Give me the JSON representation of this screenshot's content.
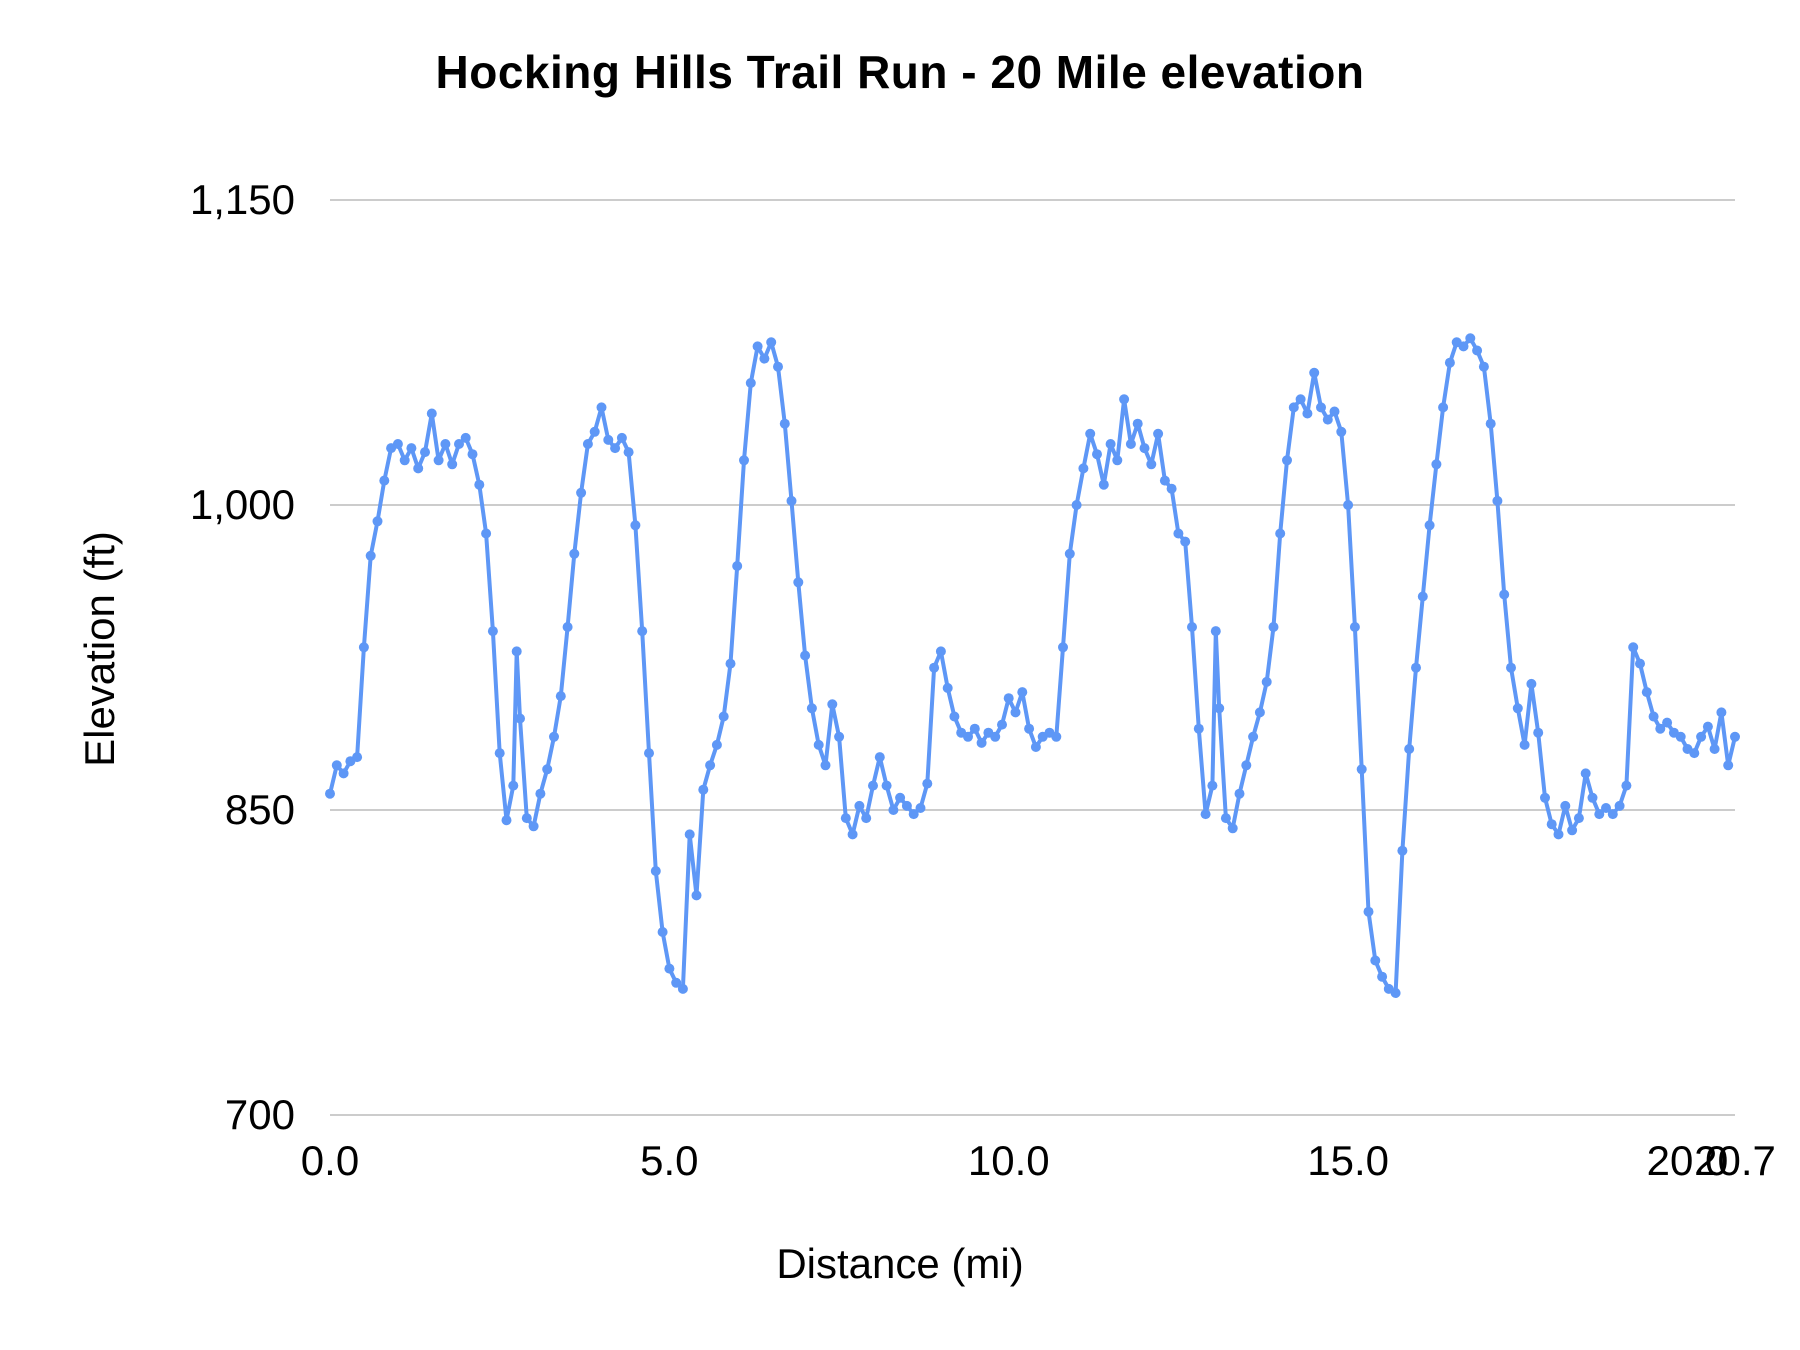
{
  "chart_data": {
    "type": "line",
    "title": "Hocking Hills Trail Run - 20 Mile elevation",
    "xlabel": "Distance (mi)",
    "ylabel": "Elevation (ft)",
    "xlim": [
      0,
      20.7
    ],
    "ylim": [
      700,
      1150
    ],
    "grid": "horizontal",
    "legend": "none",
    "line_color": "#5E97F6",
    "gridline_color": "#cccccc",
    "text_color": "#000000",
    "y_tick_values": [
      1150,
      1000,
      850,
      700
    ],
    "y_tick_labels": [
      "1,150",
      "1,000",
      "850",
      "700"
    ],
    "x_tick_values": [
      0,
      5,
      10,
      15,
      20,
      20.7
    ],
    "x_tick_labels": [
      "0.0",
      "5.0",
      "10.0",
      "15.0",
      "20.0",
      "20.7"
    ],
    "points": [
      [
        0.0,
        858
      ],
      [
        0.1,
        872
      ],
      [
        0.2,
        868
      ],
      [
        0.3,
        874
      ],
      [
        0.4,
        876
      ],
      [
        0.5,
        930
      ],
      [
        0.6,
        975
      ],
      [
        0.7,
        992
      ],
      [
        0.8,
        1012
      ],
      [
        0.9,
        1028
      ],
      [
        1.0,
        1030
      ],
      [
        1.1,
        1022
      ],
      [
        1.2,
        1028
      ],
      [
        1.3,
        1018
      ],
      [
        1.4,
        1026
      ],
      [
        1.5,
        1045
      ],
      [
        1.6,
        1022
      ],
      [
        1.7,
        1030
      ],
      [
        1.8,
        1020
      ],
      [
        1.9,
        1030
      ],
      [
        2.0,
        1033
      ],
      [
        2.1,
        1025
      ],
      [
        2.2,
        1010
      ],
      [
        2.3,
        986
      ],
      [
        2.4,
        938
      ],
      [
        2.5,
        878
      ],
      [
        2.6,
        845
      ],
      [
        2.7,
        862
      ],
      [
        2.75,
        928
      ],
      [
        2.8,
        895
      ],
      [
        2.9,
        846
      ],
      [
        3.0,
        842
      ],
      [
        3.1,
        858
      ],
      [
        3.2,
        870
      ],
      [
        3.3,
        886
      ],
      [
        3.4,
        906
      ],
      [
        3.5,
        940
      ],
      [
        3.6,
        976
      ],
      [
        3.7,
        1006
      ],
      [
        3.8,
        1030
      ],
      [
        3.9,
        1036
      ],
      [
        4.0,
        1048
      ],
      [
        4.1,
        1032
      ],
      [
        4.2,
        1028
      ],
      [
        4.3,
        1033
      ],
      [
        4.4,
        1026
      ],
      [
        4.5,
        990
      ],
      [
        4.6,
        938
      ],
      [
        4.7,
        878
      ],
      [
        4.8,
        820
      ],
      [
        4.9,
        790
      ],
      [
        5.0,
        772
      ],
      [
        5.1,
        765
      ],
      [
        5.2,
        762
      ],
      [
        5.3,
        838
      ],
      [
        5.4,
        808
      ],
      [
        5.5,
        860
      ],
      [
        5.6,
        872
      ],
      [
        5.7,
        882
      ],
      [
        5.8,
        896
      ],
      [
        5.9,
        922
      ],
      [
        6.0,
        970
      ],
      [
        6.1,
        1022
      ],
      [
        6.2,
        1060
      ],
      [
        6.3,
        1078
      ],
      [
        6.4,
        1072
      ],
      [
        6.5,
        1080
      ],
      [
        6.6,
        1068
      ],
      [
        6.7,
        1040
      ],
      [
        6.8,
        1002
      ],
      [
        6.9,
        962
      ],
      [
        7.0,
        926
      ],
      [
        7.1,
        900
      ],
      [
        7.2,
        882
      ],
      [
        7.3,
        872
      ],
      [
        7.4,
        902
      ],
      [
        7.5,
        886
      ],
      [
        7.6,
        846
      ],
      [
        7.7,
        838
      ],
      [
        7.8,
        852
      ],
      [
        7.9,
        846
      ],
      [
        8.0,
        862
      ],
      [
        8.1,
        876
      ],
      [
        8.2,
        862
      ],
      [
        8.3,
        850
      ],
      [
        8.4,
        856
      ],
      [
        8.5,
        852
      ],
      [
        8.6,
        848
      ],
      [
        8.7,
        851
      ],
      [
        8.8,
        863
      ],
      [
        8.9,
        920
      ],
      [
        9.0,
        928
      ],
      [
        9.1,
        910
      ],
      [
        9.2,
        896
      ],
      [
        9.3,
        888
      ],
      [
        9.4,
        886
      ],
      [
        9.5,
        890
      ],
      [
        9.6,
        883
      ],
      [
        9.7,
        888
      ],
      [
        9.8,
        886
      ],
      [
        9.9,
        892
      ],
      [
        10.0,
        905
      ],
      [
        10.1,
        898
      ],
      [
        10.2,
        908
      ],
      [
        10.3,
        890
      ],
      [
        10.4,
        881
      ],
      [
        10.5,
        886
      ],
      [
        10.6,
        888
      ],
      [
        10.7,
        886
      ],
      [
        10.8,
        930
      ],
      [
        10.9,
        976
      ],
      [
        11.0,
        1000
      ],
      [
        11.1,
        1018
      ],
      [
        11.2,
        1035
      ],
      [
        11.3,
        1025
      ],
      [
        11.4,
        1010
      ],
      [
        11.5,
        1030
      ],
      [
        11.6,
        1022
      ],
      [
        11.7,
        1052
      ],
      [
        11.8,
        1030
      ],
      [
        11.9,
        1040
      ],
      [
        12.0,
        1028
      ],
      [
        12.1,
        1020
      ],
      [
        12.2,
        1035
      ],
      [
        12.3,
        1012
      ],
      [
        12.4,
        1008
      ],
      [
        12.5,
        986
      ],
      [
        12.6,
        982
      ],
      [
        12.7,
        940
      ],
      [
        12.8,
        890
      ],
      [
        12.9,
        848
      ],
      [
        13.0,
        862
      ],
      [
        13.05,
        938
      ],
      [
        13.1,
        900
      ],
      [
        13.2,
        846
      ],
      [
        13.3,
        841
      ],
      [
        13.4,
        858
      ],
      [
        13.5,
        872
      ],
      [
        13.6,
        886
      ],
      [
        13.7,
        898
      ],
      [
        13.8,
        913
      ],
      [
        13.9,
        940
      ],
      [
        14.0,
        986
      ],
      [
        14.1,
        1022
      ],
      [
        14.2,
        1048
      ],
      [
        14.3,
        1052
      ],
      [
        14.4,
        1045
      ],
      [
        14.5,
        1065
      ],
      [
        14.6,
        1048
      ],
      [
        14.7,
        1042
      ],
      [
        14.8,
        1046
      ],
      [
        14.9,
        1036
      ],
      [
        15.0,
        1000
      ],
      [
        15.1,
        940
      ],
      [
        15.2,
        870
      ],
      [
        15.3,
        800
      ],
      [
        15.4,
        776
      ],
      [
        15.5,
        768
      ],
      [
        15.6,
        762
      ],
      [
        15.7,
        760
      ],
      [
        15.8,
        830
      ],
      [
        15.9,
        880
      ],
      [
        16.0,
        920
      ],
      [
        16.1,
        955
      ],
      [
        16.2,
        990
      ],
      [
        16.3,
        1020
      ],
      [
        16.4,
        1048
      ],
      [
        16.5,
        1070
      ],
      [
        16.6,
        1080
      ],
      [
        16.7,
        1078
      ],
      [
        16.8,
        1082
      ],
      [
        16.9,
        1076
      ],
      [
        17.0,
        1068
      ],
      [
        17.1,
        1040
      ],
      [
        17.2,
        1002
      ],
      [
        17.3,
        956
      ],
      [
        17.4,
        920
      ],
      [
        17.5,
        900
      ],
      [
        17.6,
        882
      ],
      [
        17.7,
        912
      ],
      [
        17.8,
        888
      ],
      [
        17.9,
        856
      ],
      [
        18.0,
        843
      ],
      [
        18.1,
        838
      ],
      [
        18.2,
        852
      ],
      [
        18.3,
        840
      ],
      [
        18.4,
        846
      ],
      [
        18.5,
        868
      ],
      [
        18.6,
        856
      ],
      [
        18.7,
        848
      ],
      [
        18.8,
        851
      ],
      [
        18.9,
        848
      ],
      [
        19.0,
        852
      ],
      [
        19.1,
        862
      ],
      [
        19.2,
        930
      ],
      [
        19.3,
        922
      ],
      [
        19.4,
        908
      ],
      [
        19.5,
        896
      ],
      [
        19.6,
        890
      ],
      [
        19.7,
        893
      ],
      [
        19.8,
        888
      ],
      [
        19.9,
        886
      ],
      [
        20.0,
        880
      ],
      [
        20.1,
        878
      ],
      [
        20.2,
        886
      ],
      [
        20.3,
        891
      ],
      [
        20.4,
        880
      ],
      [
        20.5,
        898
      ],
      [
        20.6,
        872
      ],
      [
        20.7,
        886
      ]
    ]
  }
}
